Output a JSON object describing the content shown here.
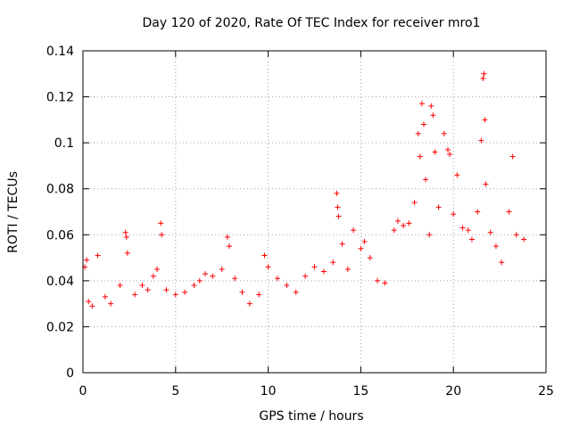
{
  "chart_data": {
    "type": "scatter",
    "title": "Day 120 of 2020, Rate Of TEC Index for receiver mro1",
    "xlabel": "GPS time / hours",
    "ylabel": "ROTI / TECUs",
    "xlim": [
      0,
      25
    ],
    "ylim": [
      0,
      0.14
    ],
    "xticks": [
      0,
      5,
      10,
      15,
      20,
      25
    ],
    "yticks": [
      0,
      0.02,
      0.04,
      0.06,
      0.08,
      0.1,
      0.12,
      0.14
    ],
    "xtick_labels": [
      "0",
      "5",
      "10",
      "15",
      "20",
      "25"
    ],
    "ytick_labels": [
      "0",
      "0.02",
      "0.04",
      "0.06",
      "0.08",
      "0.1",
      "0.12",
      "0.14"
    ],
    "grid": true,
    "marker": "+",
    "color": "#ff0000",
    "series": [
      {
        "name": "ROTI",
        "points": [
          [
            0.1,
            0.046
          ],
          [
            0.2,
            0.049
          ],
          [
            0.3,
            0.031
          ],
          [
            0.5,
            0.029
          ],
          [
            0.8,
            0.051
          ],
          [
            1.2,
            0.033
          ],
          [
            1.5,
            0.03
          ],
          [
            2.0,
            0.038
          ],
          [
            2.3,
            0.061
          ],
          [
            2.35,
            0.059
          ],
          [
            2.4,
            0.052
          ],
          [
            2.8,
            0.034
          ],
          [
            3.2,
            0.038
          ],
          [
            3.5,
            0.036
          ],
          [
            3.8,
            0.042
          ],
          [
            4.0,
            0.045
          ],
          [
            4.2,
            0.065
          ],
          [
            4.25,
            0.06
          ],
          [
            4.5,
            0.036
          ],
          [
            5.0,
            0.034
          ],
          [
            5.5,
            0.035
          ],
          [
            6.0,
            0.038
          ],
          [
            6.3,
            0.04
          ],
          [
            6.6,
            0.043
          ],
          [
            7.0,
            0.042
          ],
          [
            7.5,
            0.045
          ],
          [
            7.8,
            0.059
          ],
          [
            7.9,
            0.055
          ],
          [
            8.2,
            0.041
          ],
          [
            8.6,
            0.035
          ],
          [
            9.0,
            0.03
          ],
          [
            9.5,
            0.034
          ],
          [
            9.8,
            0.051
          ],
          [
            10.0,
            0.046
          ],
          [
            10.5,
            0.041
          ],
          [
            11.0,
            0.038
          ],
          [
            11.5,
            0.035
          ],
          [
            12.0,
            0.042
          ],
          [
            12.5,
            0.046
          ],
          [
            13.0,
            0.044
          ],
          [
            13.5,
            0.048
          ],
          [
            13.7,
            0.078
          ],
          [
            13.75,
            0.072
          ],
          [
            13.8,
            0.068
          ],
          [
            14.0,
            0.056
          ],
          [
            14.3,
            0.045
          ],
          [
            14.6,
            0.062
          ],
          [
            15.0,
            0.054
          ],
          [
            15.2,
            0.057
          ],
          [
            15.5,
            0.05
          ],
          [
            15.9,
            0.04
          ],
          [
            16.3,
            0.039
          ],
          [
            16.8,
            0.062
          ],
          [
            17.0,
            0.066
          ],
          [
            17.3,
            0.064
          ],
          [
            17.6,
            0.065
          ],
          [
            17.9,
            0.074
          ],
          [
            18.1,
            0.104
          ],
          [
            18.2,
            0.094
          ],
          [
            18.3,
            0.117
          ],
          [
            18.4,
            0.108
          ],
          [
            18.5,
            0.084
          ],
          [
            18.7,
            0.06
          ],
          [
            18.8,
            0.116
          ],
          [
            18.9,
            0.112
          ],
          [
            19.0,
            0.096
          ],
          [
            19.2,
            0.072
          ],
          [
            19.5,
            0.104
          ],
          [
            19.7,
            0.097
          ],
          [
            19.8,
            0.095
          ],
          [
            20.0,
            0.069
          ],
          [
            20.2,
            0.086
          ],
          [
            20.5,
            0.063
          ],
          [
            20.8,
            0.062
          ],
          [
            21.0,
            0.058
          ],
          [
            21.3,
            0.07
          ],
          [
            21.5,
            0.101
          ],
          [
            21.6,
            0.128
          ],
          [
            21.65,
            0.13
          ],
          [
            21.7,
            0.11
          ],
          [
            21.75,
            0.082
          ],
          [
            22.0,
            0.061
          ],
          [
            22.3,
            0.055
          ],
          [
            22.6,
            0.048
          ],
          [
            23.0,
            0.07
          ],
          [
            23.2,
            0.094
          ],
          [
            23.4,
            0.06
          ],
          [
            23.8,
            0.058
          ]
        ]
      }
    ]
  }
}
